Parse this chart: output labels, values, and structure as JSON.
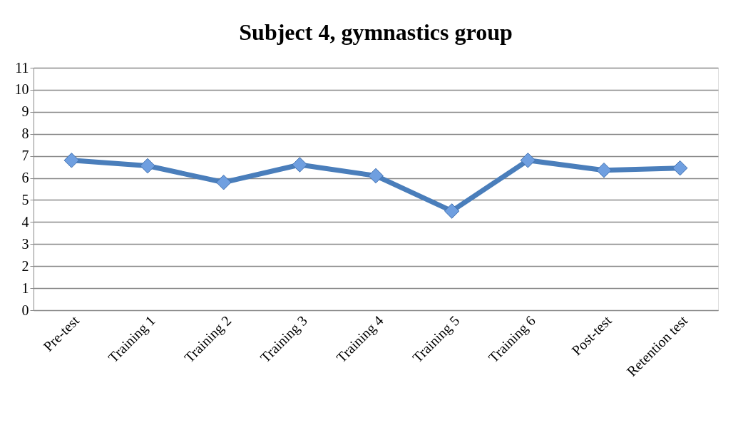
{
  "chart_data": {
    "type": "line",
    "title": "Subject 4, gymnastics group",
    "categories": [
      "Pre-test",
      "Training 1",
      "Training 2",
      "Training 3",
      "Training 4",
      "Training 5",
      "Training 6",
      "Post-test",
      "Retention test"
    ],
    "series": [
      {
        "color": "#4a7ebb",
        "values": [
          6.8,
          6.55,
          5.8,
          6.6,
          6.1,
          4.5,
          6.8,
          6.35,
          6.45
        ]
      }
    ],
    "ylim": [
      0,
      11
    ],
    "yticks": [
      0,
      1,
      2,
      3,
      4,
      5,
      6,
      7,
      8,
      9,
      10,
      11
    ],
    "grid": "y",
    "marker": "diamond",
    "line_style": "solid",
    "legend": false
  }
}
